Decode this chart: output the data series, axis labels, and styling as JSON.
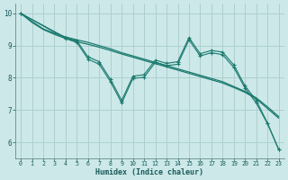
{
  "xlabel": "Humidex (Indice chaleur)",
  "bg_color": "#cce8e8",
  "grid_color": "#aacccc",
  "line_color": "#1a7a6e",
  "xlim": [
    -0.5,
    23.5
  ],
  "ylim": [
    5.5,
    10.3
  ],
  "yticks": [
    6,
    7,
    8,
    9,
    10
  ],
  "xticks": [
    0,
    1,
    2,
    3,
    4,
    5,
    6,
    7,
    8,
    9,
    10,
    11,
    12,
    13,
    14,
    15,
    16,
    17,
    18,
    19,
    20,
    21,
    22,
    23
  ],
  "series": [
    {
      "x": [
        0,
        1,
        2,
        3,
        4,
        5,
        6,
        7,
        8,
        9,
        10,
        11,
        12,
        13,
        14,
        15,
        16,
        17,
        18,
        19,
        20,
        21,
        22,
        23
      ],
      "y": [
        10.0,
        9.75,
        9.52,
        9.38,
        9.27,
        9.18,
        9.1,
        9.0,
        8.9,
        8.78,
        8.68,
        8.58,
        8.48,
        8.38,
        8.28,
        8.18,
        8.08,
        7.98,
        7.88,
        7.73,
        7.58,
        7.38,
        7.1,
        6.8
      ],
      "marker": false,
      "lw": 0.9
    },
    {
      "x": [
        0,
        1,
        2,
        3,
        4,
        5,
        6,
        7,
        8,
        9,
        10,
        11,
        12,
        13,
        14,
        15,
        16,
        17,
        18,
        19,
        20,
        21,
        22,
        23
      ],
      "y": [
        10.0,
        9.72,
        9.5,
        9.35,
        9.22,
        9.12,
        9.04,
        8.95,
        8.85,
        8.74,
        8.64,
        8.54,
        8.44,
        8.34,
        8.24,
        8.14,
        8.04,
        7.94,
        7.84,
        7.7,
        7.55,
        7.35,
        7.05,
        6.75
      ],
      "marker": false,
      "lw": 0.9
    },
    {
      "x": [
        0,
        4,
        5,
        6,
        7,
        8,
        9,
        10,
        11,
        12,
        13,
        14,
        15,
        16,
        17,
        18,
        19,
        20,
        21,
        22,
        23
      ],
      "y": [
        10.0,
        9.25,
        9.15,
        8.65,
        8.5,
        7.95,
        7.3,
        8.05,
        8.1,
        8.55,
        8.45,
        8.5,
        9.25,
        8.75,
        8.85,
        8.8,
        8.4,
        7.75,
        7.3,
        6.6,
        5.78
      ],
      "marker": true,
      "lw": 0.8
    },
    {
      "x": [
        0,
        4,
        5,
        6,
        7,
        8,
        9,
        10,
        11,
        12,
        13,
        14,
        15,
        16,
        17,
        18,
        19,
        20,
        21,
        22,
        23
      ],
      "y": [
        10.0,
        9.22,
        9.1,
        8.58,
        8.42,
        7.88,
        7.22,
        7.98,
        8.02,
        8.48,
        8.38,
        8.42,
        9.18,
        8.68,
        8.78,
        8.72,
        8.32,
        7.68,
        7.22,
        6.58,
        5.78
      ],
      "marker": true,
      "lw": 0.8
    }
  ]
}
